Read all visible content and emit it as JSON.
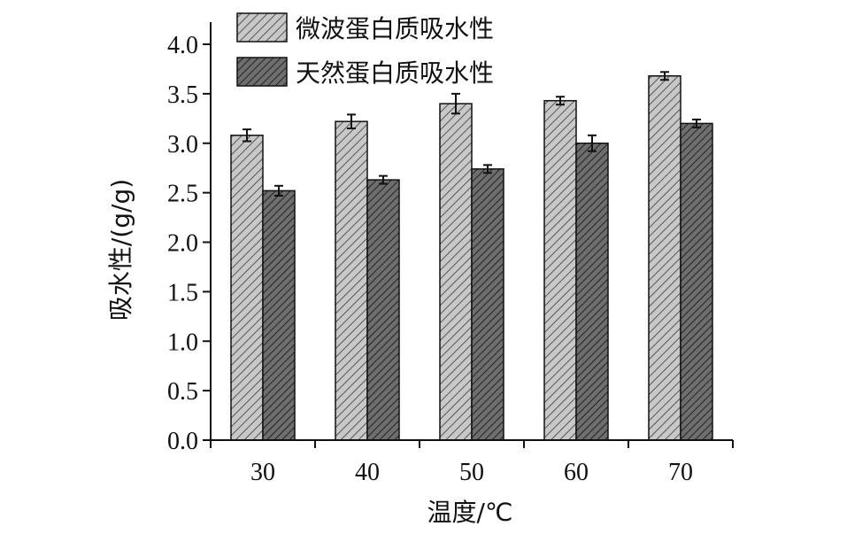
{
  "chart_data": {
    "type": "bar",
    "categories": [
      "30",
      "40",
      "50",
      "60",
      "70"
    ],
    "series": [
      {
        "name": "微波蛋白质吸水性",
        "values": [
          3.08,
          3.22,
          3.4,
          3.43,
          3.68
        ],
        "errors": [
          0.06,
          0.07,
          0.1,
          0.04,
          0.04
        ],
        "color": "#c8c8c8",
        "hatch_color": "#555555"
      },
      {
        "name": "天然蛋白质吸水性",
        "values": [
          2.52,
          2.63,
          2.74,
          3.0,
          3.2
        ],
        "errors": [
          0.05,
          0.04,
          0.04,
          0.08,
          0.04
        ],
        "color": "#6e6e6e",
        "hatch_color": "#222222"
      }
    ],
    "xlabel": "温度/℃",
    "ylabel": "吸水性/(g/g)",
    "ylim": [
      0,
      4.0
    ],
    "yticks": [
      "0.0",
      "0.5",
      "1.0",
      "1.5",
      "2.0",
      "2.5",
      "3.0",
      "3.5",
      "4.0"
    ],
    "grid": false,
    "legend_position": "top-left"
  }
}
